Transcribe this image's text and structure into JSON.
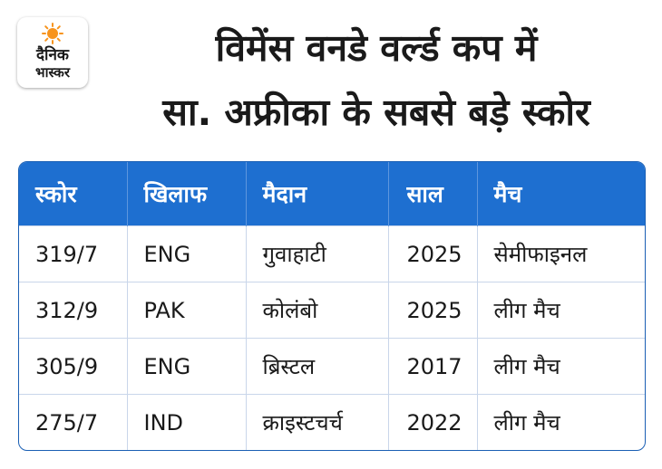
{
  "logo": {
    "line1": "दैनिक",
    "line2": "भास्कर",
    "sun_color": "#f7941d"
  },
  "title": {
    "line1": "विमेंस वनडे वर्ल्ड कप में",
    "line2": "सा. अफ्रीका के सबसे बड़े स्कोर"
  },
  "colors": {
    "header_bg": "#1e6fd0",
    "border": "#1a5fb4"
  },
  "table": {
    "headers": [
      "स्कोर",
      "खिलाफ",
      "मैदान",
      "साल",
      "मैच"
    ],
    "rows": [
      [
        "319/7",
        "ENG",
        "गुवाहाटी",
        "2025",
        "सेमीफाइनल"
      ],
      [
        "312/9",
        "PAK",
        "कोलंबो",
        "2025",
        "लीग मैच"
      ],
      [
        "305/9",
        "ENG",
        "ब्रिस्टल",
        "2017",
        "लीग मैच"
      ],
      [
        "275/7",
        "IND",
        "क्राइस्टचर्च",
        "2022",
        "लीग मैच"
      ]
    ]
  }
}
